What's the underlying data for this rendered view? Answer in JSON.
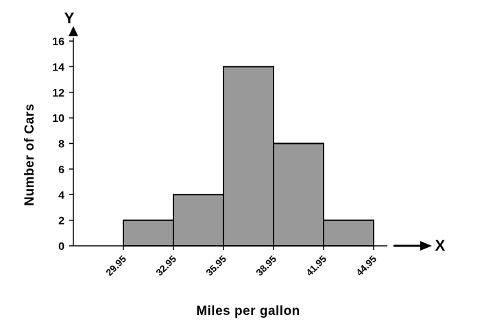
{
  "chart_data": {
    "type": "bar",
    "title": "",
    "xlabel": "Miles per gallon",
    "ylabel": "Number of Cars",
    "x_axis_letter": "X",
    "y_axis_letter": "Y",
    "bin_edges": [
      29.95,
      32.95,
      35.95,
      38.95,
      41.95,
      44.95
    ],
    "x_tick_labels": [
      "29.95",
      "32.95",
      "35.95",
      "38.95",
      "41.95",
      "44.95"
    ],
    "values": [
      2,
      4,
      14,
      8,
      2
    ],
    "ylim": [
      0,
      16
    ],
    "y_ticks": [
      0,
      2,
      4,
      6,
      8,
      10,
      12,
      14,
      16
    ],
    "grid": false,
    "legend": "none",
    "bar_color": "#999999",
    "bar_edge_color": "#000000"
  }
}
